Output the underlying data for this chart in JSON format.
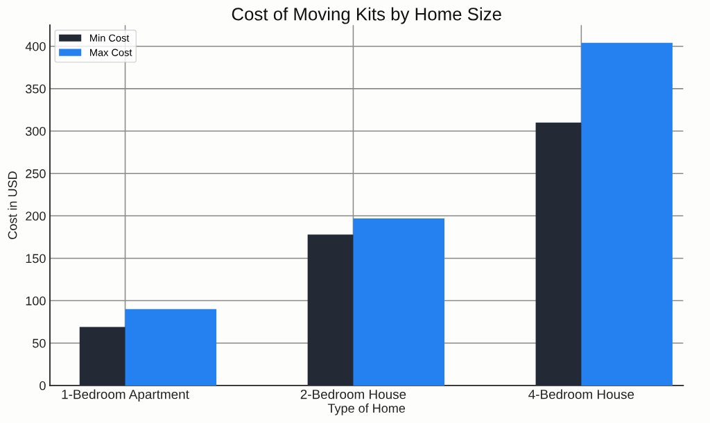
{
  "chart_data": {
    "type": "bar",
    "title": "Cost of Moving Kits by Home Size",
    "xlabel": "Type of Home",
    "ylabel": "Cost in USD",
    "categories": [
      "1-Bedroom Apartment",
      "2-Bedroom House",
      "4-Bedroom House"
    ],
    "series": [
      {
        "name": "Min Cost",
        "color": "#232a36",
        "values": [
          69,
          178,
          310
        ]
      },
      {
        "name": "Max Cost",
        "color": "#2580f0",
        "values": [
          90,
          197,
          404
        ]
      }
    ],
    "ylim": [
      0,
      425
    ],
    "yticks": [
      0,
      50,
      100,
      150,
      200,
      250,
      300,
      350,
      400
    ],
    "grid": true,
    "legend": "top left"
  }
}
